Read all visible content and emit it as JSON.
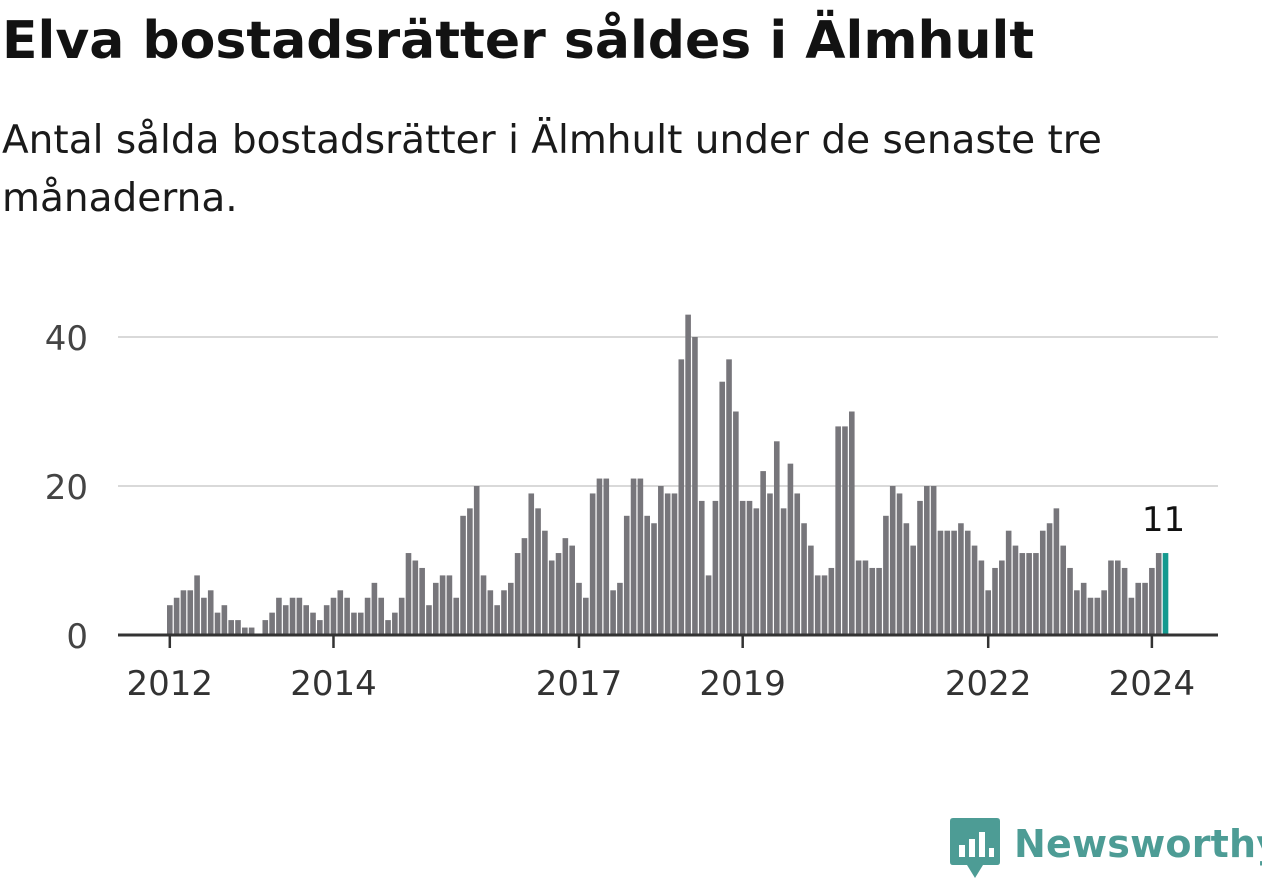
{
  "title": "Elva bostadsrätter såldes i Älmhult",
  "subtitle": "Antal sålda bostadsrätter i Älmhult under de senaste tre månaderna.",
  "brand": "Newsworthy",
  "colors": {
    "bar": "#77767b",
    "highlight": "#149a8f",
    "grid": "#d9d9d9",
    "axis": "#333333",
    "brand": "#4d9c95"
  },
  "chart_data": {
    "type": "bar",
    "ylim": [
      0,
      43
    ],
    "yticks": [
      0,
      20,
      40
    ],
    "x_tick_labels": [
      "2012",
      "2014",
      "2017",
      "2019",
      "2022",
      "2024"
    ],
    "grid": true,
    "annotation": {
      "label": "11",
      "target": "last"
    },
    "first_period": "2012-01",
    "last_period": "2024-03",
    "values": [
      4,
      5,
      6,
      6,
      8,
      5,
      6,
      3,
      4,
      2,
      2,
      1,
      1,
      0,
      2,
      3,
      5,
      4,
      5,
      5,
      4,
      3,
      2,
      4,
      5,
      6,
      5,
      3,
      3,
      5,
      7,
      5,
      2,
      3,
      5,
      11,
      10,
      9,
      4,
      7,
      8,
      8,
      5,
      16,
      17,
      20,
      8,
      6,
      4,
      6,
      7,
      11,
      13,
      19,
      17,
      14,
      10,
      11,
      13,
      12,
      7,
      5,
      19,
      21,
      21,
      6,
      7,
      16,
      21,
      21,
      16,
      15,
      20,
      19,
      19,
      37,
      43,
      40,
      18,
      8,
      18,
      34,
      37,
      30,
      18,
      18,
      17,
      22,
      19,
      26,
      17,
      23,
      19,
      15,
      12,
      8,
      8,
      9,
      28,
      28,
      30,
      10,
      10,
      9,
      9,
      16,
      20,
      19,
      15,
      12,
      18,
      20,
      20,
      14,
      14,
      14,
      15,
      14,
      12,
      10,
      6,
      9,
      10,
      14,
      12,
      11,
      11,
      11,
      14,
      15,
      17,
      12,
      9,
      6,
      7,
      5,
      5,
      6,
      10,
      10,
      9,
      5,
      7,
      7,
      9,
      11,
      11
    ]
  }
}
